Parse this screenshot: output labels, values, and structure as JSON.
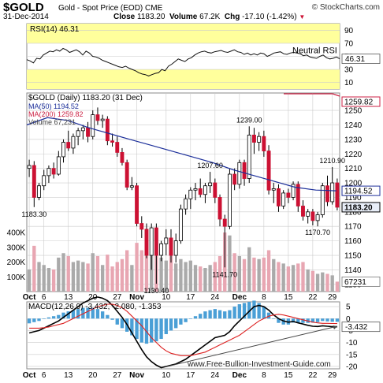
{
  "header": {
    "symbol": "$GOLD",
    "description": "Gold - Spot Price (EOD) CME",
    "brand": "© StockCharts.com",
    "date": "31-Dec-2014",
    "close_label": "Close",
    "close_value": "1183.20",
    "volume_label": "Volume",
    "volume_value": "67.2K",
    "chg_label": "Chg",
    "chg_value": "-17.10 (-1.42%)",
    "chg_marker": "▼"
  },
  "colors": {
    "up_candle": "#ffffff",
    "down_candle": "#cc1133",
    "ma50": "#1c2f9a",
    "ma200": "#cc2244",
    "rsi_band": "#ffff9c",
    "volume_up": "#aaaaaa",
    "volume_down": "#e8a6b2",
    "macd_hist": "#4a9fd6",
    "macd_line": "#000000",
    "signal_line": "#dd2222",
    "grid": "#cccccc",
    "last_label_bg": "#e8eef8"
  },
  "chart_data": [
    {
      "type": "line",
      "panel": "rsi",
      "title": "RSI(14) 46.31",
      "y_ticks": [
        10,
        30,
        50,
        70,
        90
      ],
      "ylim": [
        0,
        100
      ],
      "overbought": 70,
      "oversold": 30,
      "annotation": "Neutral RSI",
      "last_value_label": "46.31",
      "series": [
        {
          "name": "RSI(14)",
          "x": [
            0,
            2,
            4,
            6,
            8,
            10,
            12,
            14,
            16,
            18,
            20,
            22,
            24,
            26,
            28,
            30,
            32,
            34,
            36,
            38,
            40,
            42,
            44,
            46,
            48,
            50,
            52,
            54,
            56,
            58,
            60,
            62,
            64,
            66,
            68,
            70,
            72,
            74,
            76,
            78,
            80,
            82,
            84,
            86,
            88,
            90,
            92,
            94,
            96,
            98,
            100,
            102,
            104,
            106,
            108,
            110,
            112,
            114,
            116,
            118,
            120,
            122,
            124,
            126,
            128,
            130,
            132,
            134,
            136,
            138,
            140,
            142,
            144,
            146,
            148,
            150,
            152,
            154,
            156,
            158,
            160,
            162,
            164,
            166,
            168,
            170,
            172,
            174,
            176,
            178,
            180,
            182,
            184,
            186,
            188,
            190
          ],
          "values": [
            45,
            43,
            40,
            47,
            46,
            52,
            55,
            58,
            57,
            60,
            58,
            62,
            60,
            56,
            58,
            60,
            57,
            52,
            58,
            55,
            50,
            49,
            47,
            44,
            42,
            40,
            38,
            36,
            34,
            33,
            35,
            32,
            30,
            28,
            25,
            23,
            22,
            20,
            22,
            24,
            25,
            30,
            28,
            35,
            38,
            42,
            46,
            44,
            42,
            46,
            48,
            52,
            55,
            57,
            58,
            56,
            55,
            57,
            58,
            59,
            57,
            56,
            58,
            60,
            57,
            56,
            53,
            55,
            52,
            54,
            52,
            55,
            54,
            50,
            52,
            55,
            56,
            57,
            54,
            53,
            55,
            56,
            55,
            54,
            51,
            52,
            49,
            48,
            47,
            50,
            52,
            48,
            46,
            47,
            49,
            46.31
          ]
        }
      ]
    },
    {
      "type": "candlestick",
      "panel": "price",
      "title": "$GOLD (Daily) 1183.20 (31 Dec)",
      "legend": [
        "MA(50) 1194.52",
        "MA(200) 1259.82",
        "Volume 67,231"
      ],
      "y_ticks": [
        1130,
        1140,
        1150,
        1160,
        1170,
        1180,
        1190,
        1200,
        1210,
        1220,
        1230,
        1240,
        1250
      ],
      "ylim": [
        1125,
        1262
      ],
      "volume_ticks": [
        "100K",
        "200K",
        "300K",
        "400K"
      ],
      "volume_max": 480000,
      "x_ticks": [
        {
          "label": "Oct",
          "bold": true,
          "index": 0
        },
        {
          "label": "6",
          "index": 3
        },
        {
          "label": "13",
          "index": 8
        },
        {
          "label": "20",
          "index": 13
        },
        {
          "label": "27",
          "index": 18
        },
        {
          "label": "Nov",
          "bold": true,
          "index": 22
        },
        {
          "label": "10",
          "index": 28
        },
        {
          "label": "17",
          "index": 33
        },
        {
          "label": "24",
          "index": 38
        },
        {
          "label": "Dec",
          "bold": true,
          "index": 43
        },
        {
          "label": "8",
          "index": 48
        },
        {
          "label": "15",
          "index": 53
        },
        {
          "label": "22",
          "index": 58
        },
        {
          "label": "29",
          "index": 62
        }
      ],
      "annotations": [
        {
          "text": "1183.30",
          "index": 1,
          "value": 1183.3,
          "pos": "below"
        },
        {
          "text": "1130.40",
          "index": 26,
          "value": 1130.4,
          "pos": "below"
        },
        {
          "text": "1207.60",
          "index": 37,
          "value": 1207.6,
          "pos": "above"
        },
        {
          "text": "1141.70",
          "index": 40,
          "value": 1141.7,
          "pos": "below"
        },
        {
          "text": "1239.00",
          "index": 45,
          "value": 1239.0,
          "pos": "above"
        },
        {
          "text": "1170.70",
          "index": 59,
          "value": 1170.7,
          "pos": "below"
        },
        {
          "text": "1210.90",
          "index": 62,
          "value": 1210.9,
          "pos": "above"
        }
      ],
      "right_labels": [
        {
          "text": "1259.82",
          "value": 1259.82,
          "style": "red"
        },
        {
          "text": "1194.52",
          "value": 1194.52,
          "style": "blue"
        },
        {
          "text": "1183.20",
          "value": 1183.2,
          "style": "bold"
        }
      ],
      "volume_label": "67231",
      "candles": [
        [
          1210,
          1216,
          1204,
          1212,
          150000
        ],
        [
          1212,
          1215,
          1183.3,
          1190,
          310000
        ],
        [
          1190,
          1200,
          1188,
          1198,
          200000
        ],
        [
          1198,
          1209,
          1195,
          1205,
          180000
        ],
        [
          1205,
          1212,
          1200,
          1210,
          160000
        ],
        [
          1210,
          1214,
          1203,
          1206,
          150000
        ],
        [
          1206,
          1222,
          1205,
          1218,
          230000
        ],
        [
          1218,
          1230,
          1214,
          1228,
          260000
        ],
        [
          1228,
          1236,
          1222,
          1224,
          240000
        ],
        [
          1224,
          1234,
          1220,
          1232,
          200000
        ],
        [
          1232,
          1238,
          1226,
          1236,
          210000
        ],
        [
          1236,
          1240,
          1230,
          1238,
          200000
        ],
        [
          1238,
          1242,
          1228,
          1232,
          190000
        ],
        [
          1232,
          1250,
          1230,
          1247,
          260000
        ],
        [
          1247,
          1252,
          1240,
          1243,
          240000
        ],
        [
          1243,
          1247,
          1238,
          1244,
          180000
        ],
        [
          1244,
          1246,
          1226,
          1229,
          250000
        ],
        [
          1229,
          1234,
          1225,
          1228,
          170000
        ],
        [
          1228,
          1232,
          1218,
          1221,
          200000
        ],
        [
          1221,
          1224,
          1212,
          1214,
          220000
        ],
        [
          1214,
          1216,
          1195,
          1197,
          280000
        ],
        [
          1197,
          1204,
          1195,
          1198,
          180000
        ],
        [
          1198,
          1200,
          1170,
          1172,
          330000
        ],
        [
          1172,
          1177,
          1162,
          1168,
          280000
        ],
        [
          1168,
          1172,
          1148,
          1150,
          350000
        ],
        [
          1150,
          1172,
          1140,
          1169,
          320000
        ],
        [
          1169,
          1172,
          1130.4,
          1150,
          420000
        ],
        [
          1150,
          1160,
          1146,
          1158,
          230000
        ],
        [
          1158,
          1168,
          1150,
          1162,
          210000
        ],
        [
          1162,
          1168,
          1145,
          1150,
          270000
        ],
        [
          1150,
          1165,
          1145,
          1160,
          190000
        ],
        [
          1160,
          1185,
          1158,
          1182,
          220000
        ],
        [
          1182,
          1192,
          1178,
          1189,
          200000
        ],
        [
          1189,
          1197,
          1182,
          1195,
          210000
        ],
        [
          1195,
          1200,
          1188,
          1196,
          180000
        ],
        [
          1196,
          1203,
          1190,
          1192,
          170000
        ],
        [
          1192,
          1200,
          1186,
          1198,
          160000
        ],
        [
          1198,
          1207.6,
          1193,
          1200,
          180000
        ],
        [
          1200,
          1203,
          1186,
          1190,
          200000
        ],
        [
          1190,
          1192,
          1170,
          1175,
          240000
        ],
        [
          1175,
          1178,
          1141.7,
          1170,
          400000
        ],
        [
          1170,
          1210,
          1168,
          1206,
          380000
        ],
        [
          1206,
          1210,
          1195,
          1199,
          260000
        ],
        [
          1199,
          1216,
          1196,
          1214,
          240000
        ],
        [
          1214,
          1216,
          1198,
          1203,
          220000
        ],
        [
          1203,
          1239,
          1200,
          1233,
          300000
        ],
        [
          1233,
          1238,
          1220,
          1228,
          230000
        ],
        [
          1228,
          1235,
          1222,
          1232,
          220000
        ],
        [
          1232,
          1236,
          1218,
          1222,
          230000
        ],
        [
          1222,
          1226,
          1192,
          1195,
          280000
        ],
        [
          1195,
          1200,
          1186,
          1196,
          220000
        ],
        [
          1196,
          1199,
          1180,
          1184,
          200000
        ],
        [
          1184,
          1195,
          1182,
          1193,
          190000
        ],
        [
          1193,
          1196,
          1186,
          1190,
          170000
        ],
        [
          1190,
          1201,
          1188,
          1199,
          180000
        ],
        [
          1199,
          1201,
          1180,
          1184,
          190000
        ],
        [
          1184,
          1188,
          1174,
          1177,
          200000
        ],
        [
          1177,
          1182,
          1172,
          1180,
          150000
        ],
        [
          1180,
          1182,
          1170.7,
          1174,
          140000
        ],
        [
          1174,
          1180,
          1170,
          1178,
          120000
        ],
        [
          1178,
          1200,
          1176,
          1198,
          130000
        ],
        [
          1198,
          1205,
          1184,
          1187,
          120000
        ],
        [
          1187,
          1210.9,
          1185,
          1200,
          110000
        ],
        [
          1200,
          1203,
          1181,
          1183.2,
          67231
        ]
      ],
      "ma50": [
        1240,
        1245,
        1243,
        1238,
        1234,
        1230,
        1226,
        1222,
        1218,
        1214,
        1209,
        1205,
        1201,
        1197,
        1195,
        1194.52
      ],
      "ma200": [
        1286,
        1284,
        1281,
        1277,
        1272,
        1268,
        1264,
        1262,
        1259.82
      ]
    },
    {
      "type": "line",
      "panel": "macd",
      "title": "MACD(12,26,9) -3.432, -2.080, -1.353",
      "y_ticks": [
        5,
        0,
        -5,
        -10,
        -15,
        -20
      ],
      "ylim": [
        -21,
        7
      ],
      "x_ticks": [
        "Oct",
        "6",
        "13",
        "20",
        "27",
        "Nov",
        "10",
        "17",
        "24",
        "Dec",
        "8",
        "15",
        "22",
        "29"
      ],
      "last_value_label": "-3.432",
      "series": [
        {
          "name": "MACD",
          "values": [
            -6,
            -5.5,
            -5,
            -4,
            -3,
            -2,
            -1,
            0.5,
            2,
            3.5,
            5,
            6.5,
            7.5,
            8.5,
            9,
            8.5,
            7.5,
            5.5,
            3,
            0.5,
            -2.5,
            -6,
            -9.5,
            -13,
            -16,
            -18,
            -19.5,
            -20.5,
            -20,
            -19.5,
            -19,
            -18,
            -17,
            -15.5,
            -14,
            -12.5,
            -11,
            -9.5,
            -8,
            -7.5,
            -7,
            -5.5,
            -3,
            -1,
            1,
            3,
            5,
            5.5,
            5,
            3.5,
            1.5,
            0,
            -1,
            -1.5,
            -1.2,
            -1.8,
            -2.3,
            -2.8,
            -3.2,
            -3.3,
            -3,
            -3.2,
            -3.4,
            -3.432
          ]
        },
        {
          "name": "Signal",
          "values": [
            -4,
            -4,
            -4,
            -3.8,
            -3.5,
            -3,
            -2.5,
            -2,
            -1,
            0,
            1,
            2,
            3,
            4,
            5,
            5.5,
            6,
            6,
            5.5,
            4.5,
            3,
            1,
            -1,
            -3,
            -5.5,
            -8,
            -10,
            -12,
            -13.5,
            -14.5,
            -15,
            -15.5,
            -15.5,
            -15.5,
            -15,
            -14.5,
            -14,
            -13,
            -12,
            -11,
            -10,
            -9,
            -8,
            -7,
            -5.5,
            -4,
            -2.5,
            -1,
            0,
            1,
            1.5,
            1.8,
            1.5,
            1,
            0.5,
            0,
            -0.5,
            -1,
            -1.5,
            -1.8,
            -2,
            -2,
            -2.05,
            -2.08
          ]
        },
        {
          "name": "Histogram",
          "values": [
            -2,
            -1.5,
            -1,
            -0.2,
            0.5,
            1,
            1.5,
            2.5,
            3,
            3.5,
            4,
            4.5,
            4.5,
            4.5,
            4,
            3,
            1.5,
            -0.5,
            -2.5,
            -4,
            -5.5,
            -7,
            -8.5,
            -10,
            -10.5,
            -10,
            -9.5,
            -8.5,
            -6.5,
            -5,
            -4,
            -2.5,
            -1.5,
            0,
            1,
            2,
            3,
            3.5,
            4,
            3.5,
            3,
            3.5,
            5,
            6,
            6.5,
            7,
            7.5,
            6.5,
            5,
            2.5,
            0,
            -1.8,
            -2.5,
            -2.5,
            -1.7,
            -1.8,
            -1.8,
            -1.8,
            -1.7,
            -1.5,
            -1,
            -1.2,
            -1.35,
            -1.353
          ]
        }
      ],
      "watermark": "www.Free-Bullion-Investment-Guide.com"
    }
  ]
}
